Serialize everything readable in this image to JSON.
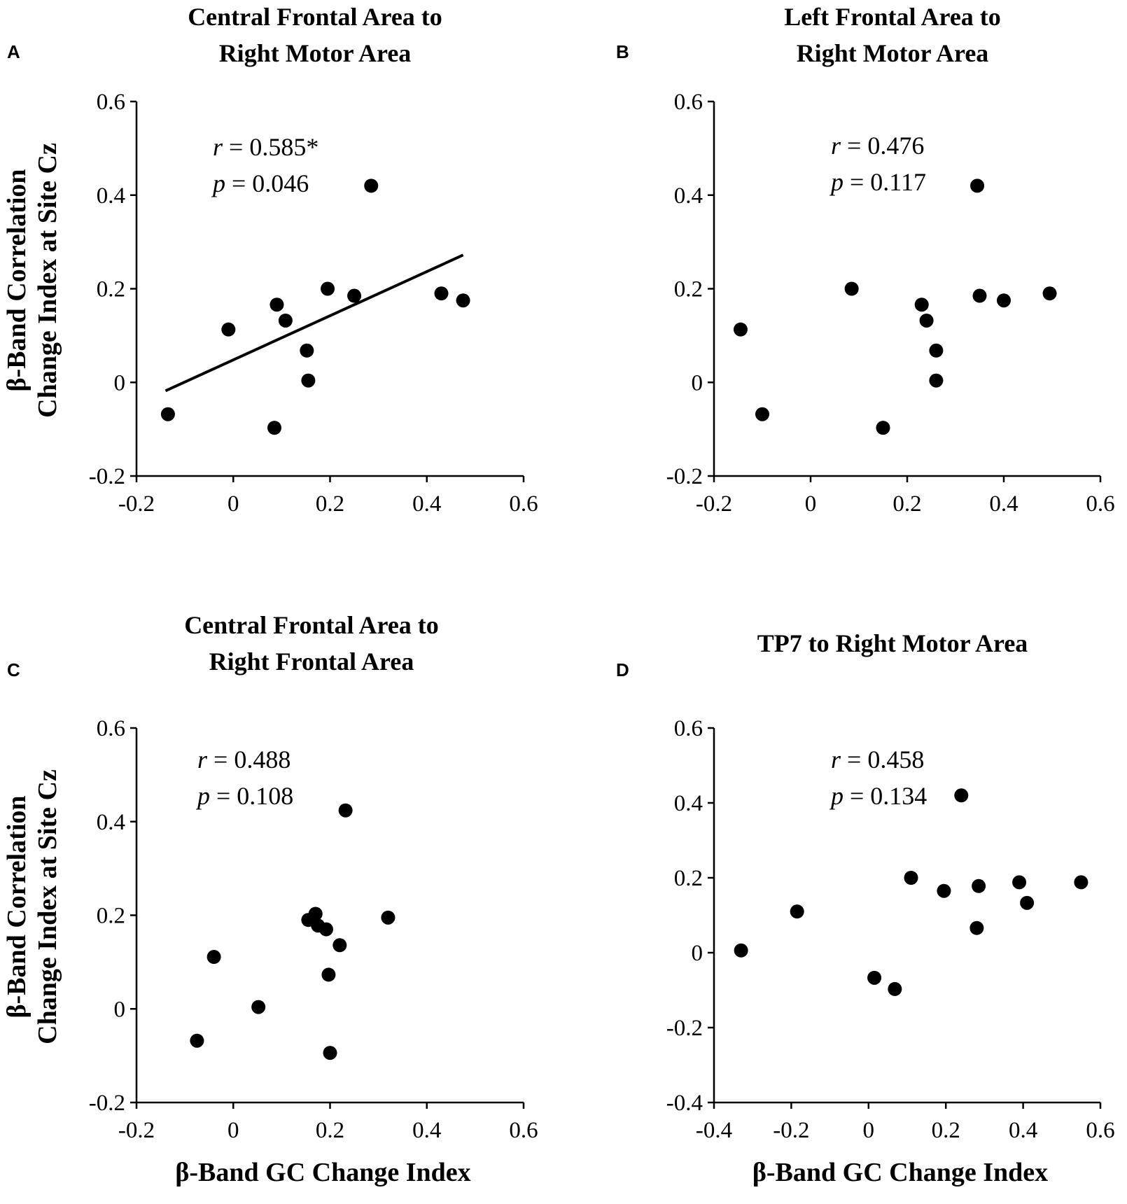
{
  "chart_data": [
    {
      "type": "scatter",
      "panel_label": "A",
      "title": [
        "Central Frontal Area to",
        "Right Motor Area"
      ],
      "xlabel": "",
      "ylabel": [
        "β-Band Correlation",
        "Change Index at Site Cz"
      ],
      "xlim": [
        -0.2,
        0.6
      ],
      "ylim": [
        -0.2,
        0.6
      ],
      "xticks": [
        "-0.2",
        "0",
        "0.2",
        "0.4",
        "0.6"
      ],
      "yticks": [
        "-0.2",
        "0",
        "0.2",
        "0.4",
        "0.6"
      ],
      "stats": {
        "r_label": "r",
        "r_text": " = 0.585*",
        "p_label": "p",
        "p_text": " = 0.046"
      },
      "trendline": {
        "x": [
          -0.14,
          0.475
        ],
        "y": [
          -0.018,
          0.272
        ]
      },
      "points": [
        {
          "x": 0.285,
          "y": 0.42
        },
        {
          "x": -0.01,
          "y": 0.113
        },
        {
          "x": 0.09,
          "y": 0.166
        },
        {
          "x": 0.108,
          "y": 0.132
        },
        {
          "x": 0.195,
          "y": 0.2
        },
        {
          "x": 0.25,
          "y": 0.185
        },
        {
          "x": 0.43,
          "y": 0.19
        },
        {
          "x": 0.475,
          "y": 0.175
        },
        {
          "x": 0.152,
          "y": 0.068
        },
        {
          "x": 0.155,
          "y": 0.004
        },
        {
          "x": -0.135,
          "y": -0.068
        },
        {
          "x": 0.085,
          "y": -0.097
        }
      ]
    },
    {
      "type": "scatter",
      "panel_label": "B",
      "title": [
        "Left Frontal Area to",
        "Right Motor Area"
      ],
      "xlabel": "",
      "ylabel": [],
      "xlim": [
        -0.2,
        0.6
      ],
      "ylim": [
        -0.2,
        0.6
      ],
      "xticks": [
        "-0.2",
        "0",
        "0.2",
        "0.4",
        "0.6"
      ],
      "yticks": [
        "-0.2",
        "0",
        "0.2",
        "0.4",
        "0.6"
      ],
      "stats": {
        "r_label": "r",
        "r_text": " = 0.476",
        "p_label": "p",
        "p_text": " = 0.117"
      },
      "points": [
        {
          "x": 0.345,
          "y": 0.42
        },
        {
          "x": -0.145,
          "y": 0.113
        },
        {
          "x": -0.1,
          "y": -0.068
        },
        {
          "x": 0.085,
          "y": 0.2
        },
        {
          "x": 0.15,
          "y": -0.097
        },
        {
          "x": 0.23,
          "y": 0.166
        },
        {
          "x": 0.24,
          "y": 0.132
        },
        {
          "x": 0.26,
          "y": 0.068
        },
        {
          "x": 0.26,
          "y": 0.004
        },
        {
          "x": 0.35,
          "y": 0.185
        },
        {
          "x": 0.4,
          "y": 0.175
        },
        {
          "x": 0.495,
          "y": 0.19
        }
      ]
    },
    {
      "type": "scatter",
      "panel_label": "C",
      "title": [
        "Central Frontal Area to",
        "Right Frontal Area"
      ],
      "xlabel": "β-Band GC Change Index",
      "ylabel": [
        "β-Band Correlation",
        "Change Index at Site Cz"
      ],
      "xlim": [
        -0.2,
        0.6
      ],
      "ylim": [
        -0.2,
        0.6
      ],
      "xticks": [
        "-0.2",
        "0",
        "0.2",
        "0.4",
        "0.6"
      ],
      "yticks": [
        "-0.2",
        "0",
        "0.2",
        "0.4",
        "0.6"
      ],
      "stats": {
        "r_label": "r",
        "r_text": " = 0.488",
        "p_label": "p",
        "p_text": " = 0.108"
      },
      "points": [
        {
          "x": 0.232,
          "y": 0.424
        },
        {
          "x": -0.04,
          "y": 0.111
        },
        {
          "x": 0.052,
          "y": 0.004
        },
        {
          "x": -0.075,
          "y": -0.068
        },
        {
          "x": 0.155,
          "y": 0.19
        },
        {
          "x": 0.17,
          "y": 0.203
        },
        {
          "x": 0.175,
          "y": 0.178
        },
        {
          "x": 0.192,
          "y": 0.17
        },
        {
          "x": 0.22,
          "y": 0.136
        },
        {
          "x": 0.197,
          "y": 0.073
        },
        {
          "x": 0.2,
          "y": -0.094
        },
        {
          "x": 0.32,
          "y": 0.195
        }
      ]
    },
    {
      "type": "scatter",
      "panel_label": "D",
      "title": [
        "TP7 to Right Motor Area"
      ],
      "xlabel": "β-Band GC Change Index",
      "ylabel": [],
      "xlim": [
        -0.4,
        0.6
      ],
      "ylim": [
        -0.4,
        0.6
      ],
      "xticks": [
        "-0.4",
        "-0.2",
        "0",
        "0.2",
        "0.4",
        "0.6"
      ],
      "yticks": [
        "-0.4",
        "-0.2",
        "0",
        "0.2",
        "0.4",
        "0.6"
      ],
      "stats": {
        "r_label": "r",
        "r_text": " = 0.458",
        "p_label": "p",
        "p_text": " = 0.134"
      },
      "points": [
        {
          "x": 0.24,
          "y": 0.42
        },
        {
          "x": -0.33,
          "y": 0.006
        },
        {
          "x": -0.185,
          "y": 0.11
        },
        {
          "x": 0.015,
          "y": -0.067
        },
        {
          "x": 0.068,
          "y": -0.097
        },
        {
          "x": 0.11,
          "y": 0.2
        },
        {
          "x": 0.195,
          "y": 0.165
        },
        {
          "x": 0.285,
          "y": 0.178
        },
        {
          "x": 0.28,
          "y": 0.066
        },
        {
          "x": 0.39,
          "y": 0.188
        },
        {
          "x": 0.41,
          "y": 0.133
        },
        {
          "x": 0.55,
          "y": 0.188
        }
      ]
    }
  ]
}
